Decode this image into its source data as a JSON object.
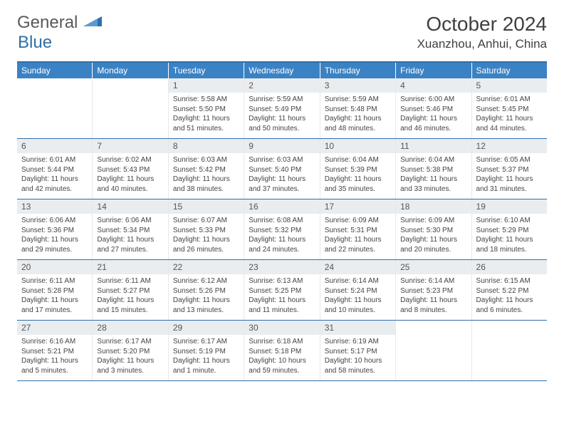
{
  "brand": {
    "part1": "General",
    "part2": "Blue"
  },
  "title": "October 2024",
  "location": "Xuanzhou, Anhui, China",
  "colors": {
    "header_bg": "#3b82c4",
    "border": "#2f6fa7",
    "daynum_bg": "#e9edf0",
    "text": "#404040"
  },
  "weekdays": [
    "Sunday",
    "Monday",
    "Tuesday",
    "Wednesday",
    "Thursday",
    "Friday",
    "Saturday"
  ],
  "weeks": [
    [
      {
        "n": "",
        "sr": "",
        "ss": "",
        "dl": ""
      },
      {
        "n": "",
        "sr": "",
        "ss": "",
        "dl": ""
      },
      {
        "n": "1",
        "sr": "Sunrise: 5:58 AM",
        "ss": "Sunset: 5:50 PM",
        "dl": "Daylight: 11 hours and 51 minutes."
      },
      {
        "n": "2",
        "sr": "Sunrise: 5:59 AM",
        "ss": "Sunset: 5:49 PM",
        "dl": "Daylight: 11 hours and 50 minutes."
      },
      {
        "n": "3",
        "sr": "Sunrise: 5:59 AM",
        "ss": "Sunset: 5:48 PM",
        "dl": "Daylight: 11 hours and 48 minutes."
      },
      {
        "n": "4",
        "sr": "Sunrise: 6:00 AM",
        "ss": "Sunset: 5:46 PM",
        "dl": "Daylight: 11 hours and 46 minutes."
      },
      {
        "n": "5",
        "sr": "Sunrise: 6:01 AM",
        "ss": "Sunset: 5:45 PM",
        "dl": "Daylight: 11 hours and 44 minutes."
      }
    ],
    [
      {
        "n": "6",
        "sr": "Sunrise: 6:01 AM",
        "ss": "Sunset: 5:44 PM",
        "dl": "Daylight: 11 hours and 42 minutes."
      },
      {
        "n": "7",
        "sr": "Sunrise: 6:02 AM",
        "ss": "Sunset: 5:43 PM",
        "dl": "Daylight: 11 hours and 40 minutes."
      },
      {
        "n": "8",
        "sr": "Sunrise: 6:03 AM",
        "ss": "Sunset: 5:42 PM",
        "dl": "Daylight: 11 hours and 38 minutes."
      },
      {
        "n": "9",
        "sr": "Sunrise: 6:03 AM",
        "ss": "Sunset: 5:40 PM",
        "dl": "Daylight: 11 hours and 37 minutes."
      },
      {
        "n": "10",
        "sr": "Sunrise: 6:04 AM",
        "ss": "Sunset: 5:39 PM",
        "dl": "Daylight: 11 hours and 35 minutes."
      },
      {
        "n": "11",
        "sr": "Sunrise: 6:04 AM",
        "ss": "Sunset: 5:38 PM",
        "dl": "Daylight: 11 hours and 33 minutes."
      },
      {
        "n": "12",
        "sr": "Sunrise: 6:05 AM",
        "ss": "Sunset: 5:37 PM",
        "dl": "Daylight: 11 hours and 31 minutes."
      }
    ],
    [
      {
        "n": "13",
        "sr": "Sunrise: 6:06 AM",
        "ss": "Sunset: 5:36 PM",
        "dl": "Daylight: 11 hours and 29 minutes."
      },
      {
        "n": "14",
        "sr": "Sunrise: 6:06 AM",
        "ss": "Sunset: 5:34 PM",
        "dl": "Daylight: 11 hours and 27 minutes."
      },
      {
        "n": "15",
        "sr": "Sunrise: 6:07 AM",
        "ss": "Sunset: 5:33 PM",
        "dl": "Daylight: 11 hours and 26 minutes."
      },
      {
        "n": "16",
        "sr": "Sunrise: 6:08 AM",
        "ss": "Sunset: 5:32 PM",
        "dl": "Daylight: 11 hours and 24 minutes."
      },
      {
        "n": "17",
        "sr": "Sunrise: 6:09 AM",
        "ss": "Sunset: 5:31 PM",
        "dl": "Daylight: 11 hours and 22 minutes."
      },
      {
        "n": "18",
        "sr": "Sunrise: 6:09 AM",
        "ss": "Sunset: 5:30 PM",
        "dl": "Daylight: 11 hours and 20 minutes."
      },
      {
        "n": "19",
        "sr": "Sunrise: 6:10 AM",
        "ss": "Sunset: 5:29 PM",
        "dl": "Daylight: 11 hours and 18 minutes."
      }
    ],
    [
      {
        "n": "20",
        "sr": "Sunrise: 6:11 AM",
        "ss": "Sunset: 5:28 PM",
        "dl": "Daylight: 11 hours and 17 minutes."
      },
      {
        "n": "21",
        "sr": "Sunrise: 6:11 AM",
        "ss": "Sunset: 5:27 PM",
        "dl": "Daylight: 11 hours and 15 minutes."
      },
      {
        "n": "22",
        "sr": "Sunrise: 6:12 AM",
        "ss": "Sunset: 5:26 PM",
        "dl": "Daylight: 11 hours and 13 minutes."
      },
      {
        "n": "23",
        "sr": "Sunrise: 6:13 AM",
        "ss": "Sunset: 5:25 PM",
        "dl": "Daylight: 11 hours and 11 minutes."
      },
      {
        "n": "24",
        "sr": "Sunrise: 6:14 AM",
        "ss": "Sunset: 5:24 PM",
        "dl": "Daylight: 11 hours and 10 minutes."
      },
      {
        "n": "25",
        "sr": "Sunrise: 6:14 AM",
        "ss": "Sunset: 5:23 PM",
        "dl": "Daylight: 11 hours and 8 minutes."
      },
      {
        "n": "26",
        "sr": "Sunrise: 6:15 AM",
        "ss": "Sunset: 5:22 PM",
        "dl": "Daylight: 11 hours and 6 minutes."
      }
    ],
    [
      {
        "n": "27",
        "sr": "Sunrise: 6:16 AM",
        "ss": "Sunset: 5:21 PM",
        "dl": "Daylight: 11 hours and 5 minutes."
      },
      {
        "n": "28",
        "sr": "Sunrise: 6:17 AM",
        "ss": "Sunset: 5:20 PM",
        "dl": "Daylight: 11 hours and 3 minutes."
      },
      {
        "n": "29",
        "sr": "Sunrise: 6:17 AM",
        "ss": "Sunset: 5:19 PM",
        "dl": "Daylight: 11 hours and 1 minute."
      },
      {
        "n": "30",
        "sr": "Sunrise: 6:18 AM",
        "ss": "Sunset: 5:18 PM",
        "dl": "Daylight: 10 hours and 59 minutes."
      },
      {
        "n": "31",
        "sr": "Sunrise: 6:19 AM",
        "ss": "Sunset: 5:17 PM",
        "dl": "Daylight: 10 hours and 58 minutes."
      },
      {
        "n": "",
        "sr": "",
        "ss": "",
        "dl": ""
      },
      {
        "n": "",
        "sr": "",
        "ss": "",
        "dl": ""
      }
    ]
  ]
}
